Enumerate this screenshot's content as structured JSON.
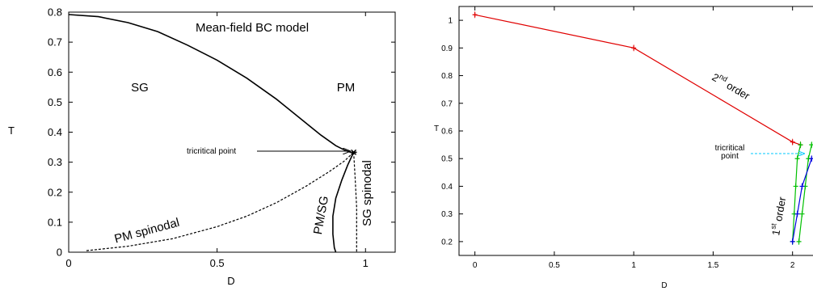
{
  "chart_data": [
    {
      "type": "line",
      "xlabel": "D",
      "ylabel": "T",
      "xlim": [
        0,
        1.1
      ],
      "ylim": [
        0,
        0.8
      ],
      "xticks": [
        "0",
        "0.5",
        "1"
      ],
      "yticks": [
        "0",
        "0.1",
        "0.2",
        "0.3",
        "0.4",
        "0.5",
        "0.6",
        "0.7",
        "0.8"
      ],
      "grid": false,
      "annotations": {
        "title": "Mean-field BC model",
        "sg": "SG",
        "pm": "PM",
        "tricritical": "tricritical point",
        "pm_spinodal": "PM spinodal",
        "sg_spinodal": "SG spinodal",
        "pm_sg": "PM/SG"
      },
      "series": [
        {
          "style": "solid",
          "x": [
            0,
            0.1,
            0.2,
            0.3,
            0.4,
            0.5,
            0.6,
            0.7,
            0.8,
            0.85,
            0.9,
            0.93,
            0.95,
            0.96
          ],
          "y": [
            0.792,
            0.785,
            0.765,
            0.735,
            0.69,
            0.64,
            0.58,
            0.51,
            0.43,
            0.39,
            0.355,
            0.34,
            0.333,
            0.333
          ]
        },
        {
          "style": "dashed",
          "x": [
            0.06,
            0.2,
            0.35,
            0.5,
            0.6,
            0.7,
            0.8,
            0.88,
            0.93,
            0.96
          ],
          "y": [
            0.005,
            0.02,
            0.045,
            0.085,
            0.12,
            0.165,
            0.22,
            0.27,
            0.305,
            0.333
          ]
        },
        {
          "style": "solid",
          "x": [
            0.96,
            0.94,
            0.92,
            0.9,
            0.89,
            0.89,
            0.895,
            0.9
          ],
          "y": [
            0.333,
            0.29,
            0.24,
            0.18,
            0.12,
            0.06,
            0.015,
            0
          ]
        },
        {
          "style": "dashed",
          "x": [
            0.96,
            0.965,
            0.97,
            0.97,
            0.97
          ],
          "y": [
            0.333,
            0.25,
            0.15,
            0.05,
            0
          ]
        }
      ]
    },
    {
      "type": "line",
      "xlabel": "D",
      "ylabel": "T",
      "xlim": [
        -0.1,
        2.2
      ],
      "ylim": [
        0.15,
        1.05
      ],
      "xticks": [
        "0",
        "0.5",
        "1",
        "1.5",
        "2"
      ],
      "yticks": [
        "0.2",
        "0.3",
        "0.4",
        "0.5",
        "0.6",
        "0.7",
        "0.8",
        "0.9",
        "1"
      ],
      "grid": false,
      "annotations": {
        "second_order": "2nd order",
        "first_order": "1st order",
        "tricritical_1": "tricritical",
        "tricritical_2": "point",
        "sup_nd": "nd",
        "sup_st": "st"
      },
      "series": [
        {
          "color": "#e00000",
          "x": [
            0,
            1,
            2,
            2.05
          ],
          "y": [
            1.02,
            0.9,
            0.56,
            0.55
          ]
        },
        {
          "color": "#00c000",
          "x": [
            2.05,
            2.03,
            2.02,
            2.01,
            2.0
          ],
          "y": [
            0.55,
            0.5,
            0.4,
            0.3,
            0.2
          ]
        },
        {
          "color": "#00c000",
          "x": [
            2.12,
            2.1,
            2.08,
            2.06,
            2.04
          ],
          "y": [
            0.55,
            0.5,
            0.4,
            0.3,
            0.2
          ]
        },
        {
          "color": "#0000e0",
          "x": [
            2.12,
            2.06,
            2.03,
            2.0
          ],
          "y": [
            0.5,
            0.4,
            0.3,
            0.2
          ]
        }
      ],
      "arrow_color": "#00c8ff"
    }
  ]
}
